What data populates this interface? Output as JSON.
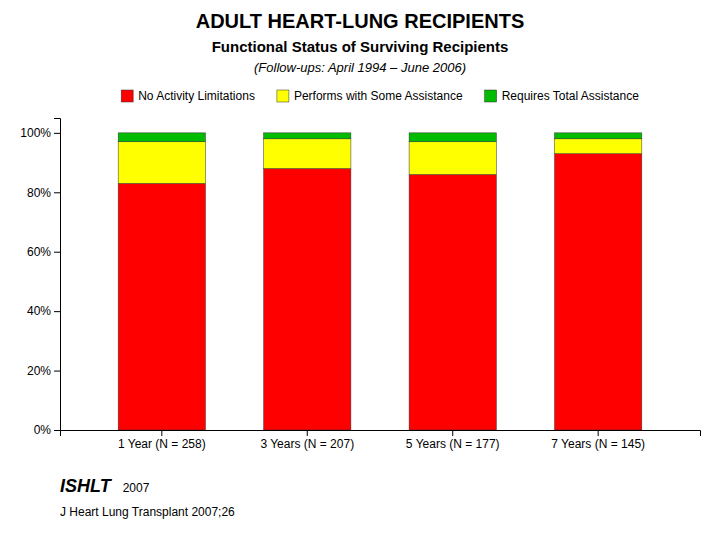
{
  "chart_data": {
    "type": "bar",
    "title": "ADULT HEART-LUNG RECIPIENTS",
    "subtitle": "Functional Status of Surviving Recipients",
    "annotations": [
      "(Follow-ups: April 1994 – June 2006)",
      "ISHLT",
      "2007",
      "J Heart Lung Transplant 2007;26"
    ],
    "categories": [
      "1 Year (N = 258)",
      "3 Years (N = 207)",
      "5 Years (N = 177)",
      "7 Years (N = 145)"
    ],
    "series": [
      {
        "name": "No Activity Limitations",
        "color": "#FF0000",
        "values": [
          83,
          88,
          86,
          93
        ]
      },
      {
        "name": "Performs with Some Assistance",
        "color": "#FFFF00",
        "values": [
          14,
          10,
          11,
          5
        ]
      },
      {
        "name": "Requires Total Assistance",
        "color": "#00BB00",
        "values": [
          3,
          2,
          3,
          2
        ]
      }
    ],
    "stacked": true,
    "ylim": [
      0,
      105
    ],
    "yticks": [
      {
        "value": 0,
        "label": "0%"
      },
      {
        "value": 20,
        "label": "20%"
      },
      {
        "value": 40,
        "label": "40%"
      },
      {
        "value": 60,
        "label": "60%"
      },
      {
        "value": 80,
        "label": "80%"
      },
      {
        "value": 100,
        "label": "100%"
      }
    ],
    "grid": false,
    "legend": "top"
  }
}
